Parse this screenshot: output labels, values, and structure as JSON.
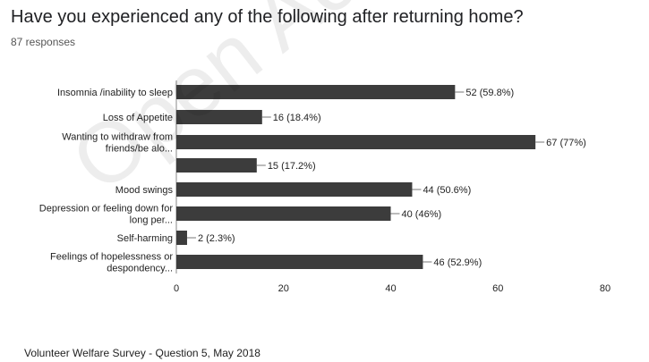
{
  "watermark": "Open Ac",
  "caption": "Volunteer Welfare Survey - Question 5, May 2018",
  "chart_data": {
    "type": "bar",
    "orientation": "horizontal",
    "title": "Have you experienced any of the following after returning home?",
    "subtitle": "87 responses",
    "xlim": [
      0,
      80
    ],
    "xticks": [
      0,
      20,
      40,
      60,
      80
    ],
    "grid": false,
    "bar_color": "#3c3c3c",
    "categories": [
      [
        "Insomnia /inability to sleep"
      ],
      [
        "Loss of Appetite"
      ],
      [
        "Wanting to withdraw from",
        "friends/be alo..."
      ],
      [
        ""
      ],
      [
        "Mood swings"
      ],
      [
        "Depression or feeling down for",
        "long per..."
      ],
      [
        "Self-harming"
      ],
      [
        "Feelings of hopelessness or",
        "despondency..."
      ]
    ],
    "values": [
      52,
      16,
      67,
      15,
      44,
      40,
      2,
      46
    ],
    "value_labels": [
      "52 (59.8%)",
      "16 (18.4%)",
      "67 (77%)",
      "15 (17.2%)",
      "44 (50.6%)",
      "40 (46%)",
      "2 (2.3%)",
      "46 (52.9%)"
    ]
  }
}
